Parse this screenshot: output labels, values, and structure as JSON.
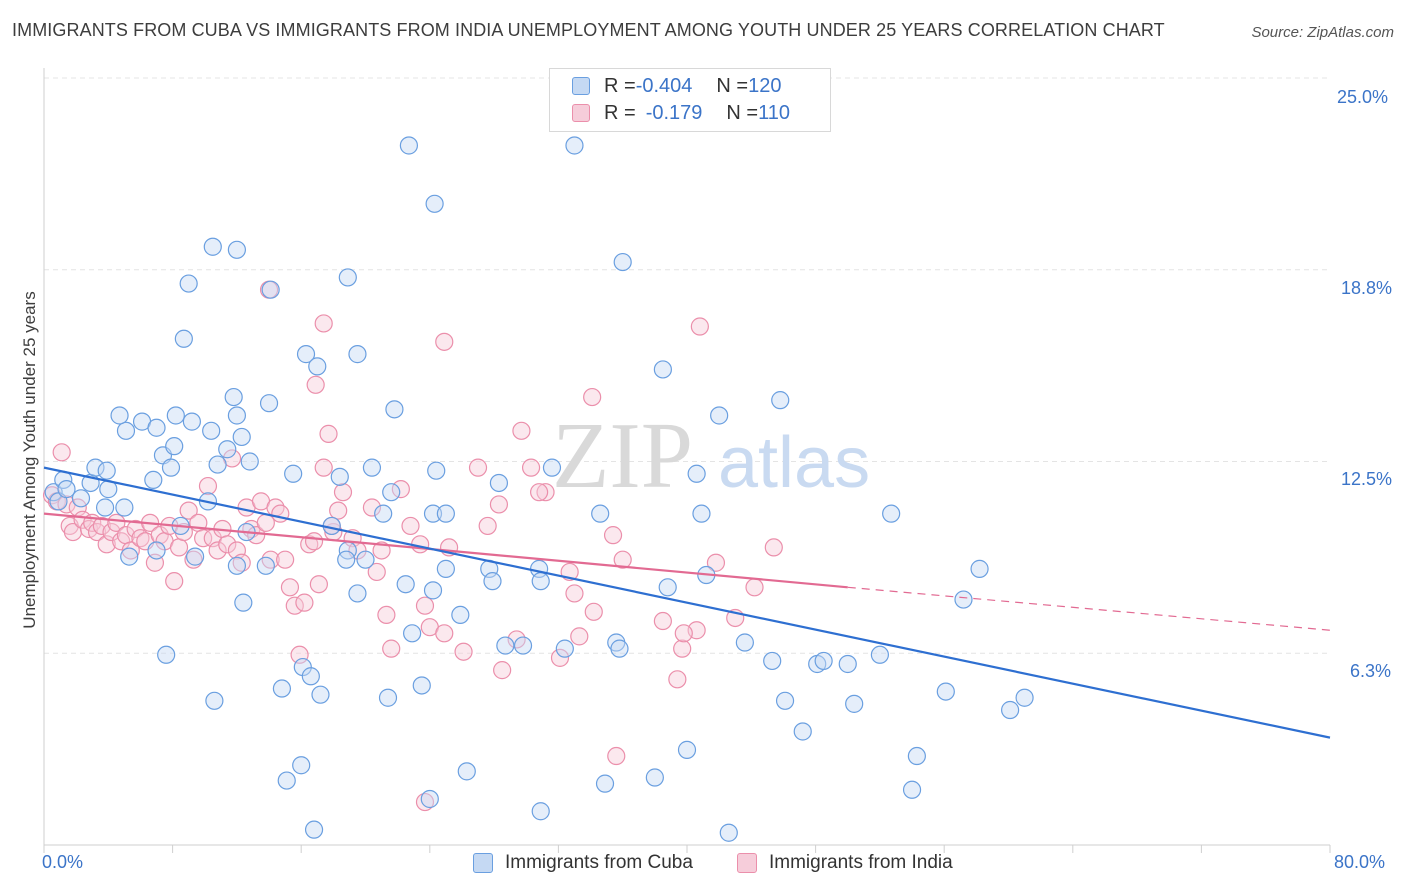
{
  "header": {
    "title": "IMMIGRANTS FROM CUBA VS IMMIGRANTS FROM INDIA UNEMPLOYMENT AMONG YOUTH UNDER 25 YEARS CORRELATION CHART",
    "source": "Source: ZipAtlas.com"
  },
  "watermark": {
    "zip": "ZIP",
    "atlas": "atlas"
  },
  "legend": {
    "rows": [
      {
        "r_label": "R = ",
        "r_value": "-0.404",
        "n_label": "N = ",
        "n_value": "120"
      },
      {
        "r_label": "R = ",
        "r_value": "-0.179",
        "n_label": "N = ",
        "n_value": "110"
      }
    ]
  },
  "colors": {
    "cuba": "#6a9fe0",
    "cuba_fill": "#c5d9f3",
    "cuba_line": "#2e6fd1",
    "india": "#eb8fab",
    "india_fill": "#f6cdda",
    "india_line": "#e26a92",
    "grid": "#e4e4e4",
    "axis_text": "#3b74c8"
  },
  "chart_data": {
    "type": "scatter",
    "title": "IMMIGRANTS FROM CUBA VS IMMIGRANTS FROM INDIA UNEMPLOYMENT AMONG YOUTH UNDER 25 YEARS CORRELATION CHART",
    "xlabel": "",
    "ylabel": "Unemployment Among Youth under 25 years",
    "xlim": [
      0,
      80
    ],
    "ylim": [
      0,
      25
    ],
    "x_tick_labels": [
      "0.0%",
      "80.0%"
    ],
    "y_tick_labels": [
      "6.3%",
      "12.5%",
      "18.8%",
      "25.0%"
    ],
    "y_ticks": [
      6.25,
      12.5,
      18.75,
      25.0
    ],
    "grid": true,
    "legend_position": "top-center",
    "series": [
      {
        "name": "Immigrants from Cuba",
        "r": -0.404,
        "n": 120,
        "trend": {
          "x": [
            0,
            80
          ],
          "y": [
            12.3,
            3.5
          ]
        },
        "points": [
          [
            0.6,
            11.5
          ],
          [
            0.9,
            11.2
          ],
          [
            1.2,
            11.9
          ],
          [
            1.4,
            11.6
          ],
          [
            2.3,
            11.3
          ],
          [
            2.9,
            11.8
          ],
          [
            3.2,
            12.3
          ],
          [
            3.8,
            11.0
          ],
          [
            4.0,
            11.6
          ],
          [
            3.9,
            12.2
          ],
          [
            5.0,
            11.0
          ],
          [
            5.3,
            9.4
          ],
          [
            5.1,
            13.5
          ],
          [
            4.7,
            14.0
          ],
          [
            6.1,
            13.8
          ],
          [
            6.8,
            11.9
          ],
          [
            7.0,
            13.6
          ],
          [
            7.4,
            12.7
          ],
          [
            7.9,
            12.3
          ],
          [
            8.1,
            13.0
          ],
          [
            8.2,
            14.0
          ],
          [
            9.2,
            13.8
          ],
          [
            10.4,
            13.5
          ],
          [
            11.4,
            12.9
          ],
          [
            10.8,
            12.4
          ],
          [
            12.0,
            19.4
          ],
          [
            10.5,
            19.5
          ],
          [
            9.0,
            18.3
          ],
          [
            14.1,
            18.1
          ],
          [
            8.7,
            16.5
          ],
          [
            12.0,
            14.0
          ],
          [
            11.8,
            14.6
          ],
          [
            12.3,
            13.3
          ],
          [
            12.8,
            12.5
          ],
          [
            14.0,
            14.4
          ],
          [
            15.5,
            12.1
          ],
          [
            16.3,
            16.0
          ],
          [
            17.0,
            15.6
          ],
          [
            18.4,
            12.0
          ],
          [
            18.9,
            18.5
          ],
          [
            19.5,
            16.0
          ],
          [
            20.4,
            12.3
          ],
          [
            21.6,
            11.5
          ],
          [
            21.8,
            14.2
          ],
          [
            24.3,
            20.9
          ],
          [
            24.4,
            12.2
          ],
          [
            24.2,
            10.8
          ],
          [
            28.3,
            11.8
          ],
          [
            22.7,
            22.8
          ],
          [
            33.0,
            22.8
          ],
          [
            36.0,
            19.0
          ],
          [
            38.5,
            15.5
          ],
          [
            42.0,
            14.0
          ],
          [
            40.6,
            12.1
          ],
          [
            45.8,
            14.5
          ],
          [
            7.0,
            9.6
          ],
          [
            8.5,
            10.4
          ],
          [
            9.4,
            9.4
          ],
          [
            10.2,
            11.2
          ],
          [
            12.0,
            9.1
          ],
          [
            12.4,
            7.9
          ],
          [
            12.6,
            10.2
          ],
          [
            13.8,
            9.1
          ],
          [
            14.8,
            5.1
          ],
          [
            16.1,
            5.8
          ],
          [
            16.6,
            5.5
          ],
          [
            17.2,
            4.9
          ],
          [
            17.9,
            10.4
          ],
          [
            18.9,
            9.6
          ],
          [
            18.8,
            9.3
          ],
          [
            19.5,
            8.2
          ],
          [
            20.0,
            9.3
          ],
          [
            21.1,
            10.8
          ],
          [
            21.4,
            4.8
          ],
          [
            22.5,
            8.5
          ],
          [
            22.9,
            6.9
          ],
          [
            23.5,
            5.2
          ],
          [
            24.2,
            8.3
          ],
          [
            25.0,
            10.8
          ],
          [
            25.0,
            9.0
          ],
          [
            25.9,
            7.5
          ],
          [
            27.7,
            9.0
          ],
          [
            27.9,
            8.6
          ],
          [
            28.7,
            6.5
          ],
          [
            29.8,
            6.5
          ],
          [
            30.8,
            9.0
          ],
          [
            30.9,
            8.6
          ],
          [
            31.6,
            12.3
          ],
          [
            32.4,
            6.4
          ],
          [
            34.6,
            10.8
          ],
          [
            35.6,
            6.6
          ],
          [
            35.8,
            6.4
          ],
          [
            38.8,
            8.4
          ],
          [
            40.9,
            10.8
          ],
          [
            41.2,
            8.8
          ],
          [
            43.6,
            6.6
          ],
          [
            45.3,
            6.0
          ],
          [
            46.1,
            4.7
          ],
          [
            47.2,
            3.7
          ],
          [
            48.1,
            5.9
          ],
          [
            48.5,
            6.0
          ],
          [
            50.0,
            5.9
          ],
          [
            50.4,
            4.6
          ],
          [
            52.0,
            6.2
          ],
          [
            52.7,
            10.8
          ],
          [
            56.1,
            5.0
          ],
          [
            57.2,
            8.0
          ],
          [
            58.2,
            9.0
          ],
          [
            60.1,
            4.4
          ],
          [
            61.0,
            4.8
          ],
          [
            7.6,
            6.2
          ],
          [
            10.6,
            4.7
          ],
          [
            15.1,
            2.1
          ],
          [
            16.0,
            2.6
          ],
          [
            16.8,
            0.5
          ],
          [
            24.0,
            1.5
          ],
          [
            26.3,
            2.4
          ],
          [
            30.9,
            1.1
          ],
          [
            34.9,
            2.0
          ],
          [
            38.0,
            2.2
          ],
          [
            40.0,
            3.1
          ],
          [
            42.6,
            0.4
          ],
          [
            54.3,
            2.9
          ],
          [
            54.0,
            1.8
          ]
        ]
      },
      {
        "name": "Immigrants from India",
        "r": -0.179,
        "n": 110,
        "trend": {
          "x": [
            0,
            50
          ],
          "y": [
            10.8,
            8.4
          ]
        },
        "trend_dashed": {
          "x": [
            50,
            80
          ],
          "y": [
            8.4,
            7.0
          ]
        },
        "points": [
          [
            0.5,
            11.4
          ],
          [
            0.8,
            11.2
          ],
          [
            1.1,
            12.8
          ],
          [
            1.4,
            11.1
          ],
          [
            1.6,
            10.4
          ],
          [
            1.8,
            10.2
          ],
          [
            2.1,
            11.0
          ],
          [
            2.4,
            10.6
          ],
          [
            2.8,
            10.3
          ],
          [
            3.0,
            10.5
          ],
          [
            3.3,
            10.2
          ],
          [
            3.6,
            10.4
          ],
          [
            3.9,
            9.8
          ],
          [
            4.2,
            10.2
          ],
          [
            4.5,
            10.5
          ],
          [
            4.8,
            9.9
          ],
          [
            5.1,
            10.1
          ],
          [
            5.4,
            9.6
          ],
          [
            5.7,
            10.3
          ],
          [
            6.0,
            10.0
          ],
          [
            6.3,
            9.9
          ],
          [
            6.6,
            10.5
          ],
          [
            6.9,
            9.2
          ],
          [
            7.2,
            10.1
          ],
          [
            7.5,
            9.9
          ],
          [
            7.8,
            10.4
          ],
          [
            8.1,
            8.6
          ],
          [
            8.4,
            9.7
          ],
          [
            8.7,
            10.2
          ],
          [
            9.0,
            10.9
          ],
          [
            9.3,
            9.3
          ],
          [
            9.6,
            10.5
          ],
          [
            9.9,
            10.0
          ],
          [
            10.2,
            11.7
          ],
          [
            10.5,
            10.0
          ],
          [
            10.8,
            9.6
          ],
          [
            11.1,
            10.3
          ],
          [
            11.4,
            9.8
          ],
          [
            11.7,
            12.6
          ],
          [
            12.0,
            9.6
          ],
          [
            12.3,
            9.2
          ],
          [
            12.6,
            11.0
          ],
          [
            12.9,
            10.3
          ],
          [
            13.2,
            10.1
          ],
          [
            13.5,
            11.2
          ],
          [
            13.8,
            10.5
          ],
          [
            14.1,
            9.3
          ],
          [
            14.4,
            11.0
          ],
          [
            14.7,
            10.8
          ],
          [
            15.0,
            9.3
          ],
          [
            15.3,
            8.4
          ],
          [
            15.6,
            7.8
          ],
          [
            15.9,
            6.2
          ],
          [
            16.2,
            7.9
          ],
          [
            16.5,
            9.8
          ],
          [
            16.8,
            9.9
          ],
          [
            17.1,
            8.5
          ],
          [
            17.4,
            12.3
          ],
          [
            17.7,
            13.4
          ],
          [
            18.0,
            10.2
          ],
          [
            18.3,
            10.9
          ],
          [
            18.6,
            11.5
          ],
          [
            19.2,
            10.0
          ],
          [
            19.5,
            9.6
          ],
          [
            20.4,
            11.0
          ],
          [
            20.7,
            8.9
          ],
          [
            21.0,
            9.6
          ],
          [
            21.3,
            7.5
          ],
          [
            21.6,
            6.4
          ],
          [
            22.2,
            11.6
          ],
          [
            22.8,
            10.4
          ],
          [
            23.4,
            9.8
          ],
          [
            23.7,
            7.8
          ],
          [
            24.0,
            7.1
          ],
          [
            24.9,
            6.9
          ],
          [
            25.2,
            9.7
          ],
          [
            26.1,
            6.3
          ],
          [
            27.0,
            12.3
          ],
          [
            27.6,
            10.4
          ],
          [
            28.5,
            5.7
          ],
          [
            29.4,
            6.7
          ],
          [
            29.7,
            13.5
          ],
          [
            30.3,
            12.3
          ],
          [
            31.2,
            11.5
          ],
          [
            32.1,
            6.1
          ],
          [
            32.7,
            8.9
          ],
          [
            33.0,
            8.2
          ],
          [
            33.3,
            6.8
          ],
          [
            34.2,
            7.6
          ],
          [
            35.4,
            10.1
          ],
          [
            36.0,
            9.3
          ],
          [
            38.5,
            7.3
          ],
          [
            39.7,
            6.4
          ],
          [
            40.6,
            7.0
          ],
          [
            41.8,
            9.2
          ],
          [
            43.0,
            7.4
          ],
          [
            44.2,
            8.4
          ],
          [
            45.4,
            9.7
          ],
          [
            17.4,
            17.0
          ],
          [
            17.9,
            10.4
          ],
          [
            30.8,
            11.5
          ],
          [
            34.1,
            14.6
          ],
          [
            39.4,
            5.4
          ],
          [
            40.8,
            16.9
          ],
          [
            24.9,
            16.4
          ],
          [
            28.3,
            11.1
          ],
          [
            35.6,
            2.9
          ],
          [
            39.8,
            6.9
          ],
          [
            23.7,
            1.4
          ],
          [
            16.9,
            15.0
          ],
          [
            14.0,
            18.1
          ]
        ]
      }
    ]
  }
}
